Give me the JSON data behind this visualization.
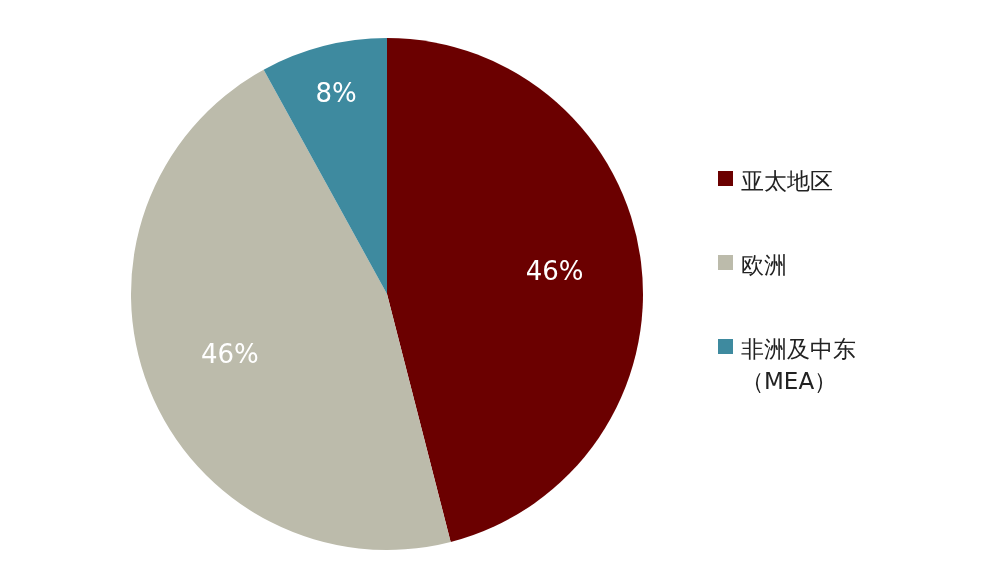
{
  "chart_data": {
    "type": "pie",
    "categories": [
      "亚太地区",
      "欧洲",
      "非洲及中东（MEA）"
    ],
    "values": [
      46,
      46,
      8
    ],
    "colors": [
      "#6b0000",
      "#bcbbab",
      "#3e8a9f"
    ],
    "value_labels": [
      "46%",
      "46%",
      "8%"
    ],
    "legend": "right"
  }
}
